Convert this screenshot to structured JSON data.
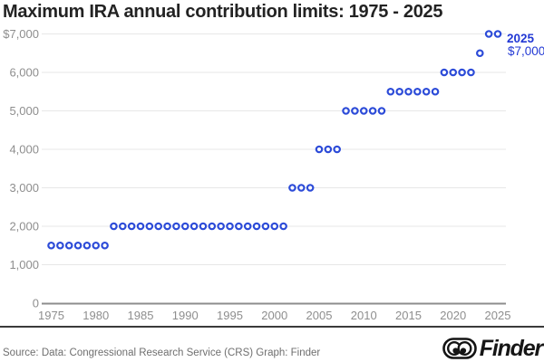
{
  "title": "Maximum IRA annual contribution limits: 1975 - 2025",
  "chart_data": {
    "type": "scatter",
    "title": "Maximum IRA annual contribution limits: 1975 - 2025",
    "x": [
      1975,
      1976,
      1977,
      1978,
      1979,
      1980,
      1981,
      1982,
      1983,
      1984,
      1985,
      1986,
      1987,
      1988,
      1989,
      1990,
      1991,
      1992,
      1993,
      1994,
      1995,
      1996,
      1997,
      1998,
      1999,
      2000,
      2001,
      2002,
      2003,
      2004,
      2005,
      2006,
      2007,
      2008,
      2009,
      2010,
      2011,
      2012,
      2013,
      2014,
      2015,
      2016,
      2017,
      2018,
      2019,
      2020,
      2021,
      2022,
      2023,
      2024,
      2025
    ],
    "y": [
      1500,
      1500,
      1500,
      1500,
      1500,
      1500,
      1500,
      2000,
      2000,
      2000,
      2000,
      2000,
      2000,
      2000,
      2000,
      2000,
      2000,
      2000,
      2000,
      2000,
      2000,
      2000,
      2000,
      2000,
      2000,
      2000,
      2000,
      3000,
      3000,
      3000,
      4000,
      4000,
      4000,
      5000,
      5000,
      5000,
      5000,
      5000,
      5500,
      5500,
      5500,
      5500,
      5500,
      5500,
      6000,
      6000,
      6000,
      6000,
      6500,
      7000,
      7000
    ],
    "xlabel": "",
    "ylabel": "",
    "xlim": [
      1975,
      2025
    ],
    "ylim": [
      0,
      7000
    ],
    "grid": "horizontal",
    "x_ticks": [
      1975,
      1980,
      1985,
      1990,
      1995,
      2000,
      2005,
      2010,
      2015,
      2020,
      2025
    ],
    "y_ticks": [
      {
        "value": 0,
        "label": "0"
      },
      {
        "value": 1000,
        "label": "1,000"
      },
      {
        "value": 2000,
        "label": "2,000"
      },
      {
        "value": 3000,
        "label": "3,000"
      },
      {
        "value": 4000,
        "label": "4,000"
      },
      {
        "value": 5000,
        "label": "5,000"
      },
      {
        "value": 6000,
        "label": "6,000"
      },
      {
        "value": 7000,
        "label": "$7,000"
      }
    ],
    "marker": "open-circle",
    "marker_color": "#2c4bd8",
    "grid_color": "#e7e7e7",
    "axis_color": "#8d8d8d",
    "tick_color": "#8e8e8e",
    "annotation": {
      "year": "2025",
      "value": "$7,000",
      "color": "#2238d4"
    }
  },
  "footer": {
    "source": "Source: Data: Congressional Research Service (CRS) Graph: Finder",
    "brand": "Finder",
    "eyes_icon": "finder-googly-eyes"
  }
}
